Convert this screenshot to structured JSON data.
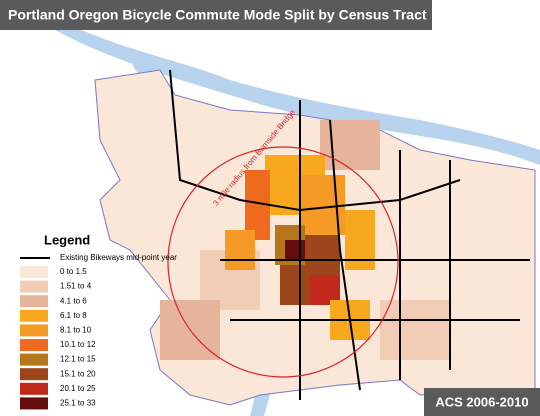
{
  "header": {
    "title": "Portland Oregon Bicycle Commute Mode Split by Census Tract"
  },
  "annotation": "3 mile radius from Burnside Bridge",
  "legend": {
    "title": "Legend",
    "line_item": {
      "label": "Existing Bikeways mid-point year",
      "color": "#000000"
    },
    "items": [
      {
        "label": "0 to 1.5",
        "color": "#fbe7d8"
      },
      {
        "label": "1.51 to 4",
        "color": "#f2cdb6"
      },
      {
        "label": "4.1 to 6",
        "color": "#e6b39b"
      },
      {
        "label": "6.1 to 8",
        "color": "#f8a81c"
      },
      {
        "label": "8.1 to 10",
        "color": "#f59a24"
      },
      {
        "label": "10.1 to 12",
        "color": "#ee6a1e"
      },
      {
        "label": "12.1 to 15",
        "color": "#b5761c"
      },
      {
        "label": "15.1 to 20",
        "color": "#9d461b"
      },
      {
        "label": "20.1 to 25",
        "color": "#c0291b"
      },
      {
        "label": "25.1 to 33",
        "color": "#650d0d"
      }
    ]
  },
  "badge": "ACS 2006-2010"
}
